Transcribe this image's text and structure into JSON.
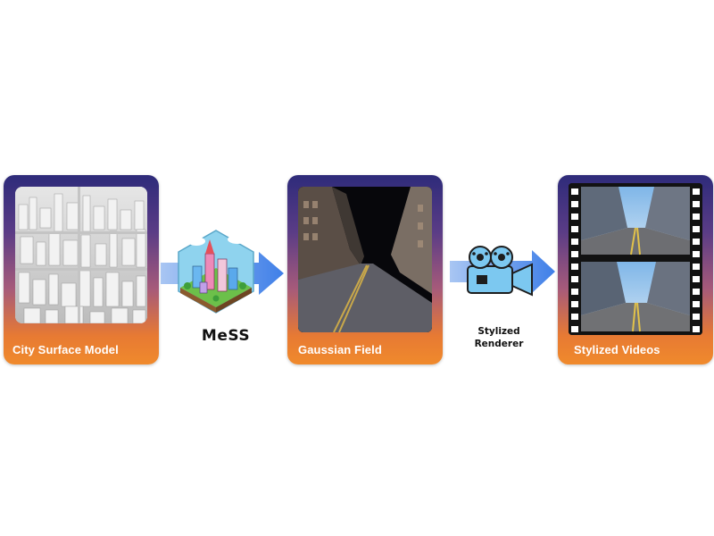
{
  "panels": [
    {
      "title": "City Surface Model"
    },
    {
      "title": "Gaussian Field"
    },
    {
      "title": "Stylized Videos"
    }
  ],
  "steps": {
    "mess": "MeSS",
    "renderer_line1": "Stylized",
    "renderer_line2": "Renderer"
  },
  "colors": {
    "panel_top": "#2e2b7a",
    "panel_bottom": "#f08a2c",
    "arrow": "#4d8ef0"
  },
  "icons": [
    "city-model-image",
    "mess-isometric-city-icon",
    "arrow-right-icon",
    "gaussian-street-image",
    "film-camera-icon",
    "film-strip-icon"
  ]
}
